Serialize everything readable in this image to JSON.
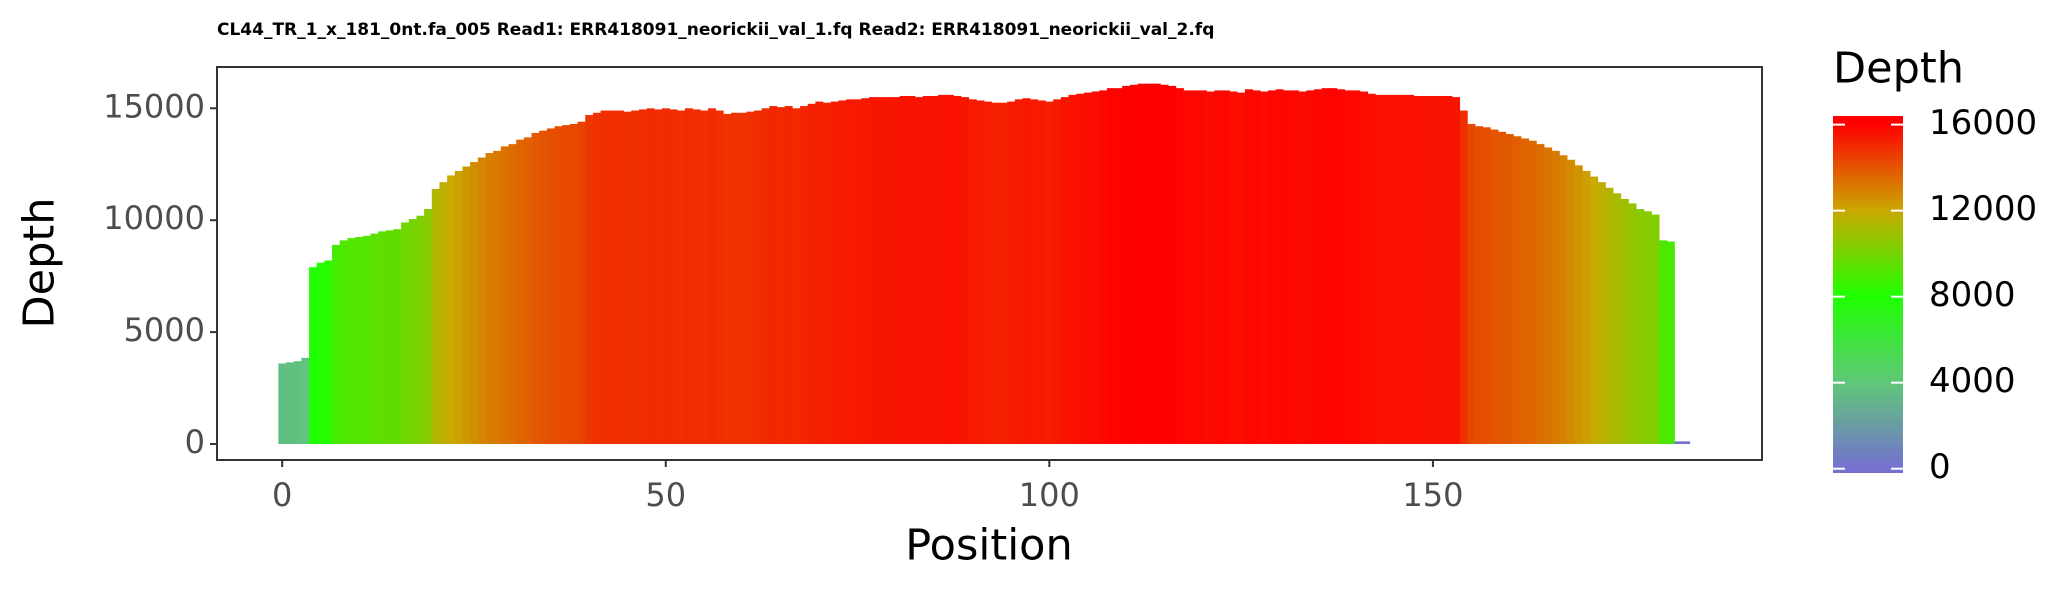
{
  "chart_data": {
    "type": "bar",
    "title": "CL44_TR_1_x_181_0nt.fa_005 Read1: ERR418091_neorickii_val_1.fq Read2: ERR418091_neorickii_val_2.fq",
    "x_label": "Position",
    "y_label": "Depth",
    "x": [
      0,
      1,
      2,
      3,
      4,
      5,
      6,
      7,
      8,
      9,
      10,
      11,
      12,
      13,
      14,
      15,
      16,
      17,
      18,
      19,
      20,
      21,
      22,
      23,
      24,
      25,
      26,
      27,
      28,
      29,
      30,
      31,
      32,
      33,
      34,
      35,
      36,
      37,
      38,
      39,
      40,
      41,
      42,
      43,
      44,
      45,
      46,
      47,
      48,
      49,
      50,
      51,
      52,
      53,
      54,
      55,
      56,
      57,
      58,
      59,
      60,
      61,
      62,
      63,
      64,
      65,
      66,
      67,
      68,
      69,
      70,
      71,
      72,
      73,
      74,
      75,
      76,
      77,
      78,
      79,
      80,
      81,
      82,
      83,
      84,
      85,
      86,
      87,
      88,
      89,
      90,
      91,
      92,
      93,
      94,
      95,
      96,
      97,
      98,
      99,
      100,
      101,
      102,
      103,
      104,
      105,
      106,
      107,
      108,
      109,
      110,
      111,
      112,
      113,
      114,
      115,
      116,
      117,
      118,
      119,
      120,
      121,
      122,
      123,
      124,
      125,
      126,
      127,
      128,
      129,
      130,
      131,
      132,
      133,
      134,
      135,
      136,
      137,
      138,
      139,
      140,
      141,
      142,
      143,
      144,
      145,
      146,
      147,
      148,
      149,
      150,
      151,
      152,
      153,
      154,
      155,
      156,
      157,
      158,
      159,
      160,
      161,
      162,
      163,
      164,
      165,
      166,
      167,
      168,
      169,
      170,
      171,
      172,
      173,
      174,
      175,
      176,
      177,
      178,
      179,
      180,
      181,
      182,
      183
    ],
    "values": [
      3600,
      3650,
      3700,
      3850,
      7900,
      8100,
      8200,
      8900,
      9100,
      9200,
      9250,
      9300,
      9400,
      9500,
      9550,
      9600,
      9900,
      10050,
      10200,
      10500,
      11400,
      11700,
      12000,
      12200,
      12400,
      12600,
      12800,
      13000,
      13100,
      13300,
      13400,
      13600,
      13700,
      13900,
      14000,
      14100,
      14200,
      14250,
      14300,
      14400,
      14700,
      14800,
      14900,
      14900,
      14900,
      14850,
      14900,
      14950,
      15000,
      14950,
      15000,
      14950,
      14900,
      15000,
      14950,
      14900,
      15000,
      14900,
      14750,
      14800,
      14800,
      14850,
      14900,
      15000,
      15100,
      15050,
      15100,
      15000,
      15100,
      15200,
      15300,
      15250,
      15300,
      15350,
      15400,
      15400,
      15450,
      15500,
      15500,
      15500,
      15500,
      15550,
      15550,
      15500,
      15550,
      15550,
      15600,
      15600,
      15550,
      15500,
      15400,
      15350,
      15300,
      15250,
      15250,
      15300,
      15400,
      15450,
      15400,
      15350,
      15300,
      15400,
      15500,
      15600,
      15650,
      15700,
      15750,
      15800,
      15900,
      15900,
      16000,
      16050,
      16100,
      16100,
      16100,
      16050,
      16000,
      15900,
      15800,
      15800,
      15800,
      15750,
      15800,
      15800,
      15750,
      15700,
      15850,
      15800,
      15750,
      15800,
      15850,
      15800,
      15800,
      15750,
      15800,
      15850,
      15900,
      15900,
      15850,
      15800,
      15800,
      15750,
      15650,
      15600,
      15600,
      15600,
      15600,
      15600,
      15550,
      15550,
      15550,
      15550,
      15550,
      15500,
      14900,
      14300,
      14200,
      14150,
      14050,
      13950,
      13850,
      13750,
      13650,
      13550,
      13400,
      13250,
      13100,
      12900,
      12700,
      12450,
      12200,
      11950,
      11700,
      11450,
      11200,
      10950,
      10750,
      10500,
      10400,
      10250,
      9100,
      9050,
      120,
      120
    ],
    "xlim": [
      -8.5,
      192.9
    ],
    "xticks": [
      0,
      50,
      100,
      150
    ],
    "ylim": [
      -714,
      16845
    ],
    "yticks": [
      0,
      5000,
      10000,
      15000
    ],
    "grid": false,
    "colorbar": {
      "title": "Depth",
      "lim": [
        -200,
        16400
      ],
      "ticks": [
        0,
        4000,
        8000,
        12000,
        16000
      ],
      "colors": [
        "#7570d0",
        "#5fc779",
        "#1eff00",
        "#c9a800",
        "#ff0000"
      ]
    }
  }
}
